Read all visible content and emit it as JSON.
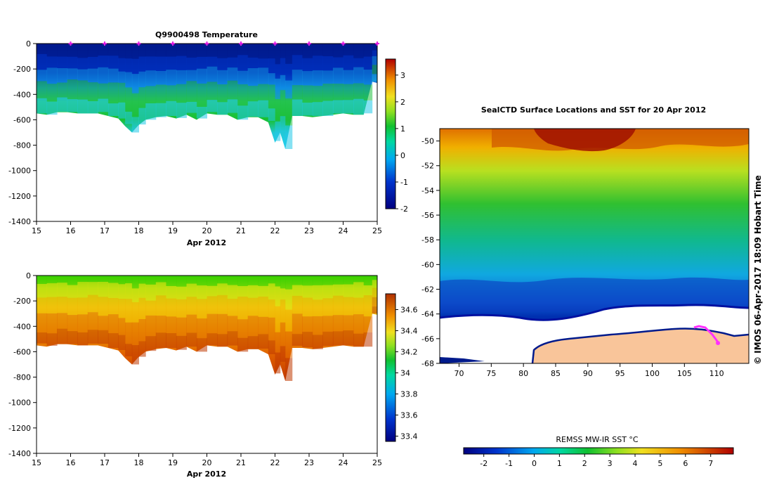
{
  "chart_data": [
    {
      "type": "heatmap",
      "title": "Q9900498  Temperature",
      "xlabel": "Apr 2012",
      "ylabel": "",
      "xlim": [
        15,
        25
      ],
      "ylim": [
        -1400,
        0
      ],
      "xticks": [
        "15",
        "16",
        "17",
        "18",
        "19",
        "20",
        "21",
        "22",
        "23",
        "24",
        "25"
      ],
      "yticks": [
        "0",
        "-200",
        "-400",
        "-600",
        "-800",
        "-1000",
        "-1200",
        "-1400"
      ],
      "colorbar": {
        "min": -2,
        "max": 3.6,
        "ticks": [
          "3",
          "2",
          "1",
          "0",
          "-1",
          "-2"
        ]
      },
      "profile_marks": [
        16,
        17,
        18,
        19,
        20,
        21,
        22,
        23,
        24,
        25
      ],
      "profile_depths": [
        [
          15.0,
          -550
        ],
        [
          15.3,
          -560
        ],
        [
          15.6,
          -540
        ],
        [
          15.9,
          -540
        ],
        [
          16.2,
          -550
        ],
        [
          16.5,
          -550
        ],
        [
          16.8,
          -550
        ],
        [
          17.1,
          -570
        ],
        [
          17.4,
          -590
        ],
        [
          17.6,
          -650
        ],
        [
          17.8,
          -700
        ],
        [
          18.0,
          -640
        ],
        [
          18.2,
          -600
        ],
        [
          18.5,
          -580
        ],
        [
          18.8,
          -570
        ],
        [
          19.1,
          -590
        ],
        [
          19.4,
          -560
        ],
        [
          19.7,
          -600
        ],
        [
          20.0,
          -550
        ],
        [
          20.3,
          -560
        ],
        [
          20.6,
          -560
        ],
        [
          20.9,
          -600
        ],
        [
          21.2,
          -580
        ],
        [
          21.5,
          -580
        ],
        [
          21.8,
          -620
        ],
        [
          22.0,
          -780
        ],
        [
          22.15,
          -700
        ],
        [
          22.3,
          -830
        ],
        [
          22.5,
          -570
        ],
        [
          22.8,
          -570
        ],
        [
          23.1,
          -580
        ],
        [
          23.4,
          -570
        ],
        [
          23.7,
          -560
        ],
        [
          24.0,
          -550
        ],
        [
          24.3,
          -560
        ],
        [
          24.6,
          -560
        ],
        [
          24.85,
          -300
        ],
        [
          25.0,
          -310
        ]
      ]
    },
    {
      "type": "heatmap",
      "title": "",
      "xlabel": "Apr 2012",
      "ylabel": "",
      "xlim": [
        15,
        25
      ],
      "ylim": [
        -1400,
        0
      ],
      "xticks": [
        "15",
        "16",
        "17",
        "18",
        "19",
        "20",
        "21",
        "22",
        "23",
        "24",
        "25"
      ],
      "yticks": [
        "0",
        "-200",
        "-400",
        "-600",
        "-800",
        "-1000",
        "-1200",
        "-1400"
      ],
      "colorbar": {
        "min": 33.35,
        "max": 34.75,
        "ticks": [
          "34.6",
          "34.4",
          "34.2",
          "34",
          "33.8",
          "33.6",
          "33.4"
        ]
      }
    },
    {
      "type": "heatmap",
      "title": "SealCTD Surface Locations and SST for 20 Apr 2012",
      "xlabel": "",
      "ylabel": "",
      "xlim": [
        67,
        115
      ],
      "ylim": [
        -68,
        -49
      ],
      "xticks": [
        "70",
        "75",
        "80",
        "85",
        "90",
        "95",
        "100",
        "105",
        "110"
      ],
      "yticks": [
        "-50",
        "-52",
        "-54",
        "-56",
        "-58",
        "-60",
        "-62",
        "-64",
        "-66",
        "-68"
      ],
      "colorbar": {
        "label": "REMSS MW-IR SST °C",
        "min": -2.8,
        "max": 7.9,
        "ticks": [
          "-2",
          "-1",
          "0",
          "1",
          "2",
          "3",
          "4",
          "5",
          "6",
          "7"
        ]
      },
      "side_label": "© IMOS 06-Apr-2017 18:09 Hobart Time"
    }
  ]
}
